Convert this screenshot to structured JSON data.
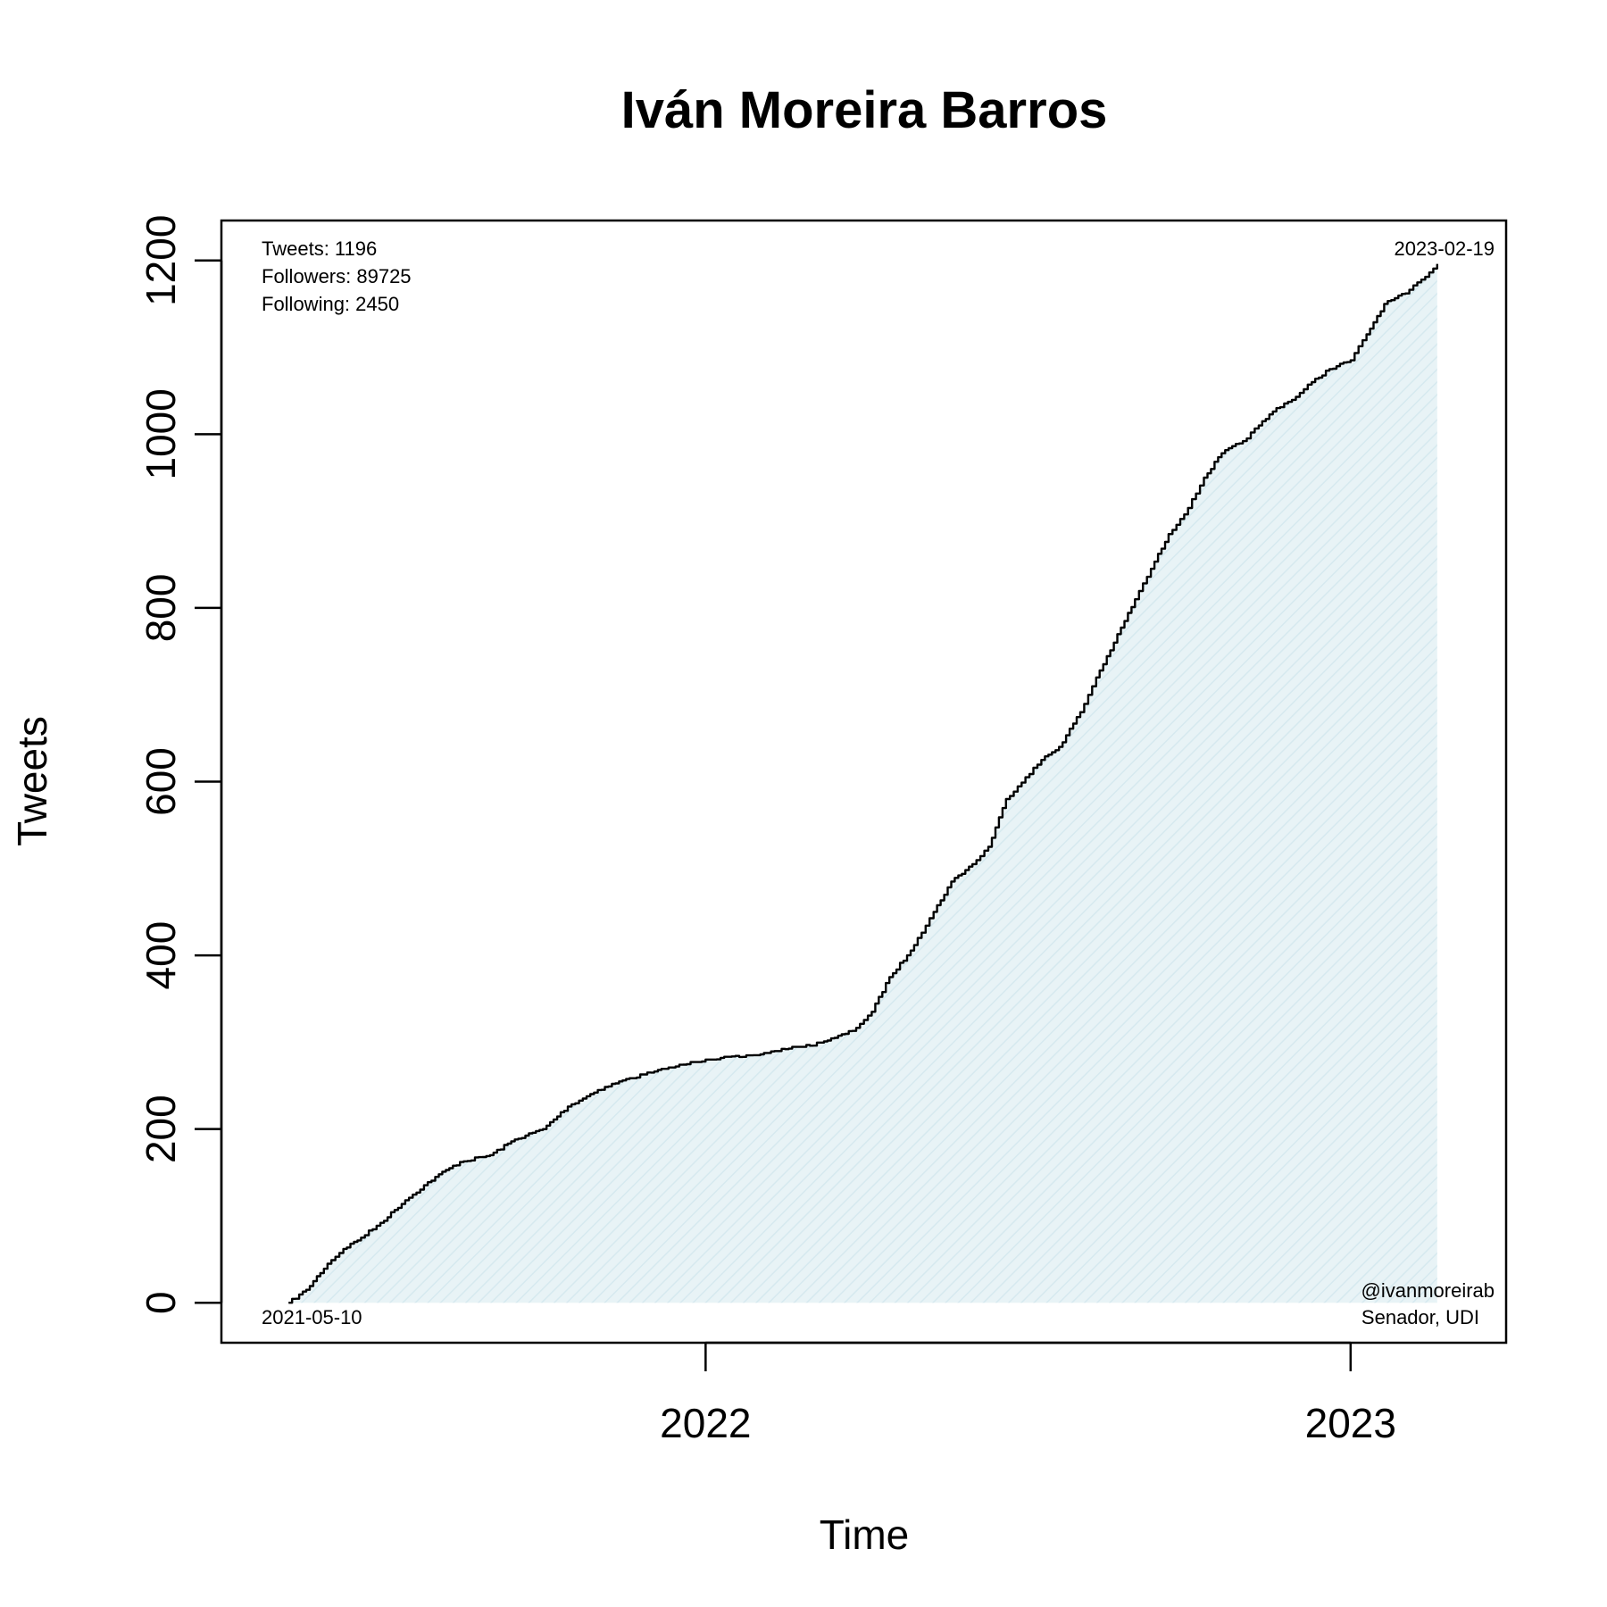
{
  "chart_data": {
    "type": "area",
    "title": "Iván Moreira Barros",
    "xlabel": "Time",
    "ylabel": "Tweets",
    "x_ticks": [
      {
        "date": "2022-01-01",
        "label": "2022"
      },
      {
        "date": "2023-01-01",
        "label": "2023"
      }
    ],
    "y_ticks": [
      0,
      200,
      400,
      600,
      800,
      1000,
      1200
    ],
    "xlim": [
      "2021-04-02",
      "2023-03-30"
    ],
    "ylim": [
      -46,
      1246
    ],
    "grid": false,
    "fill_color": "#e8f3f6",
    "line_color": "#000000",
    "series": [
      {
        "x": [
          "2021-05-10",
          "2021-05-20",
          "2021-06-01",
          "2021-06-10",
          "2021-06-20",
          "2021-07-01",
          "2021-07-15",
          "2021-08-01",
          "2021-08-15",
          "2021-09-01",
          "2021-09-15",
          "2021-10-01",
          "2021-10-15",
          "2021-11-01",
          "2021-11-15",
          "2021-12-01",
          "2021-12-15",
          "2022-01-01",
          "2022-01-20",
          "2022-02-01",
          "2022-02-15",
          "2022-03-01",
          "2022-03-15",
          "2022-03-25",
          "2022-04-05",
          "2022-04-15",
          "2022-04-25",
          "2022-05-01",
          "2022-05-10",
          "2022-05-20",
          "2022-06-01",
          "2022-06-10",
          "2022-06-20",
          "2022-07-01",
          "2022-07-10",
          "2022-07-20",
          "2022-08-01",
          "2022-08-10",
          "2022-08-20",
          "2022-09-01",
          "2022-09-10",
          "2022-09-20",
          "2022-10-01",
          "2022-10-10",
          "2022-10-20",
          "2022-11-01",
          "2022-11-10",
          "2022-11-20",
          "2022-12-01",
          "2022-12-10",
          "2022-12-20",
          "2023-01-01",
          "2023-01-10",
          "2023-01-20",
          "2023-02-01",
          "2023-02-10",
          "2023-02-19"
        ],
        "y": [
          0,
          15,
          45,
          62,
          75,
          92,
          118,
          145,
          162,
          170,
          188,
          200,
          226,
          245,
          256,
          265,
          272,
          280,
          283,
          286,
          292,
          296,
          305,
          313,
          335,
          375,
          400,
          420,
          450,
          485,
          505,
          525,
          580,
          605,
          625,
          640,
          680,
          720,
          760,
          810,
          845,
          885,
          915,
          950,
          978,
          992,
          1010,
          1030,
          1043,
          1060,
          1075,
          1085,
          1115,
          1150,
          1162,
          1178,
          1196
        ]
      }
    ],
    "annotations": {
      "stats": [
        "Tweets: 1196",
        "Followers: 89725",
        "Following: 2450"
      ],
      "start_date": "2021-05-10",
      "end_date": "2023-02-19",
      "handle": "@ivanmoreirab",
      "description": "Senador, UDI"
    }
  }
}
